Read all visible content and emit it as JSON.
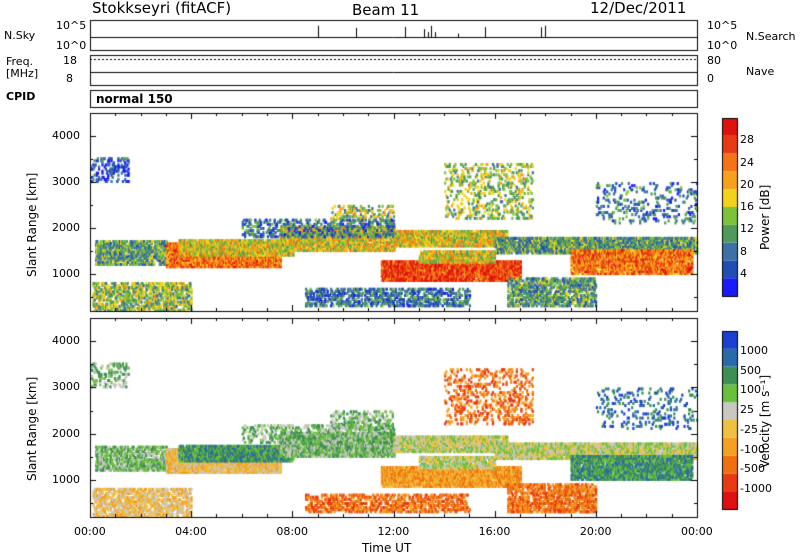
{
  "header": {
    "station": "Stokkseyri (fitACF)",
    "beam": "Beam 11",
    "date": "12/Dec/2011"
  },
  "strip_labels": {
    "nsky": "N.Sky",
    "nsky_top_tick": "10^5",
    "nsky_bottom_tick": "10^0",
    "nsearch": "N.Search",
    "nsearch_top_tick": "10^5",
    "nsearch_bottom_tick": "10^0",
    "freq": "Freq.",
    "freq_unit": "[MHz]",
    "freq_ticks": [
      "18",
      "8"
    ],
    "nave": "Nave",
    "nave_ticks": [
      "80",
      "0"
    ],
    "cpid": "CPID",
    "cpid_value": "normal 150"
  },
  "colors": {
    "power_scale": [
      "#1a1aff",
      "#1f4fb5",
      "#3e6fa6",
      "#4f9a5a",
      "#7cc23a",
      "#f2d21b",
      "#f7a01c",
      "#f47316",
      "#e83a12",
      "#e0120d"
    ],
    "velocity_scale": [
      "#1a3fd1",
      "#2a6aa8",
      "#3f8f55",
      "#69c03c",
      "#c8c8c0",
      "#f0c040",
      "#f4a020",
      "#f07010",
      "#e83a10",
      "#e01010"
    ]
  },
  "chart_data": [
    {
      "type": "heatmap",
      "title": "",
      "ylabel": "Slant Range [km]",
      "xlabel": "",
      "y_ticks": [
        1000,
        2000,
        3000,
        4000
      ],
      "ylim": [
        200,
        4500
      ],
      "x_range_hours": [
        0,
        24
      ],
      "colorbar": {
        "label": "Power [dB]",
        "ticks": [
          4,
          8,
          12,
          16,
          20,
          24,
          28
        ],
        "range": [
          0,
          32
        ]
      }
    },
    {
      "type": "heatmap",
      "title": "",
      "ylabel": "Slant Range [km]",
      "xlabel": "Time UT",
      "x_ticks": [
        "00:00",
        "04:00",
        "08:00",
        "12:00",
        "16:00",
        "20:00",
        "00:00"
      ],
      "y_ticks": [
        1000,
        2000,
        3000,
        4000
      ],
      "ylim": [
        200,
        4500
      ],
      "x_range_hours": [
        0,
        24
      ],
      "colorbar": {
        "label": "Velocity [m s⁻¹]",
        "ticks": [
          "1000",
          "500",
          "100",
          "25",
          "-25",
          "-100",
          "-500",
          "-1000"
        ]
      }
    }
  ]
}
